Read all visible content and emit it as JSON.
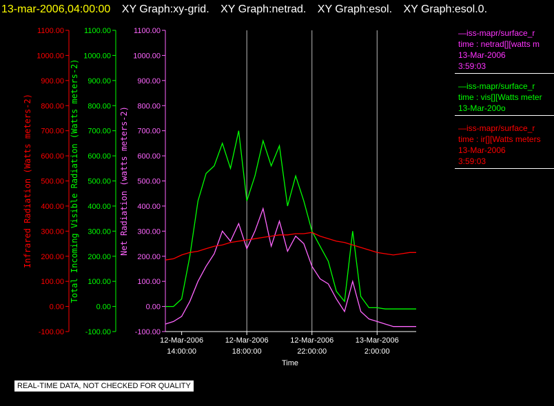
{
  "header": {
    "timestamp": "13-mar-2006,04:00:00",
    "graph_titles": [
      "XY Graph:xy-grid.",
      "XY Graph:netrad.",
      "XY Graph:esol.",
      "XY Graph:esol.0."
    ]
  },
  "legend": [
    {
      "color": "#ff33ff",
      "lines": [
        "—iss-mapr/surface_r",
        "time : netrad[][watts m",
        "13-Mar-2006",
        "3:59:03"
      ]
    },
    {
      "color": "#00ff00",
      "lines": [
        "—iss-mapr/surface_r",
        "time : vis[][Watts meter",
        "13-Mar-200o"
      ]
    },
    {
      "color": "#ff0000",
      "lines": [
        "—iss-mapr/surface_r",
        "time : ir[][Watts meters",
        "13-Mar-2006",
        "3:59:03"
      ]
    }
  ],
  "qc_note": "REAL-TIME DATA, NOT CHECKED FOR QUALITY",
  "chart_data": {
    "type": "line",
    "xlabel": "Time",
    "x_ticks": [
      {
        "line1": "12-Mar-2006",
        "line2": "14:00:00",
        "hours": 14
      },
      {
        "line1": "12-Mar-2006",
        "line2": "18:00:00",
        "hours": 18
      },
      {
        "line1": "12-Mar-2006",
        "line2": "22:00:00",
        "hours": 22
      },
      {
        "line1": "13-Mar-2006",
        "line2": "2:00:00",
        "hours": 26
      }
    ],
    "x_units": "hours since 12-Mar-2006 00:00",
    "xlim": [
      13.0,
      28.4
    ],
    "ylim": [
      -100,
      1100
    ],
    "y_ticks": [
      -100,
      0,
      100,
      200,
      300,
      400,
      500,
      600,
      700,
      800,
      900,
      1000,
      1100
    ],
    "y_tick_labels": [
      "-100.00",
      "0.00",
      "100.00",
      "200.00",
      "300.00",
      "400.00",
      "500.00",
      "600.00",
      "700.00",
      "800.00",
      "900.00",
      "1000.00",
      "1100.00"
    ],
    "grid_x": true,
    "axes": [
      {
        "label": "Infrared Radiation (Watts meters-2)",
        "color": "#ff0000"
      },
      {
        "label": "Total Incoming Visible Radiation (Watts meters-2)",
        "color": "#00ff00"
      },
      {
        "label": "Net Radiation (watts meters-2)",
        "color": "#ff66ff"
      }
    ],
    "series": [
      {
        "name": "vis",
        "color": "#00ff00",
        "x": [
          13.0,
          13.5,
          14.0,
          14.5,
          15.0,
          15.5,
          16.0,
          16.5,
          17.0,
          17.5,
          18.0,
          18.5,
          19.0,
          19.5,
          20.0,
          20.5,
          21.0,
          21.5,
          22.0,
          22.5,
          23.0,
          23.5,
          24.0,
          24.5,
          25.0,
          25.5,
          26.0,
          26.5,
          27.0,
          27.5,
          28.0,
          28.4
        ],
        "y": [
          0,
          0,
          30,
          200,
          420,
          530,
          560,
          650,
          550,
          700,
          420,
          520,
          660,
          560,
          640,
          400,
          520,
          420,
          300,
          240,
          180,
          60,
          20,
          300,
          40,
          -5,
          -5,
          -10,
          -10,
          -10,
          -10,
          -10
        ]
      },
      {
        "name": "netrad",
        "color": "#ff66ff",
        "x": [
          13.0,
          13.5,
          14.0,
          14.5,
          15.0,
          15.5,
          16.0,
          16.5,
          17.0,
          17.5,
          18.0,
          18.5,
          19.0,
          19.5,
          20.0,
          20.5,
          21.0,
          21.5,
          22.0,
          22.5,
          23.0,
          23.5,
          24.0,
          24.5,
          25.0,
          25.5,
          26.0,
          26.5,
          27.0,
          27.5,
          28.0,
          28.4
        ],
        "y": [
          -70,
          -60,
          -40,
          20,
          100,
          160,
          210,
          300,
          260,
          330,
          230,
          300,
          390,
          240,
          340,
          220,
          280,
          250,
          160,
          110,
          90,
          30,
          -20,
          100,
          -20,
          -50,
          -60,
          -70,
          -80,
          -80,
          -80,
          -80
        ]
      },
      {
        "name": "ir",
        "color": "#ff0000",
        "x": [
          13.0,
          13.5,
          14.0,
          14.5,
          15.0,
          15.5,
          16.0,
          16.5,
          17.0,
          17.5,
          18.0,
          18.5,
          19.0,
          19.5,
          20.0,
          20.5,
          21.0,
          21.5,
          22.0,
          22.5,
          23.0,
          23.5,
          24.0,
          24.5,
          25.0,
          25.5,
          26.0,
          26.5,
          27.0,
          27.5,
          28.0,
          28.4
        ],
        "y": [
          185,
          190,
          205,
          215,
          220,
          230,
          240,
          245,
          255,
          260,
          265,
          270,
          275,
          280,
          285,
          285,
          290,
          290,
          295,
          280,
          270,
          260,
          255,
          245,
          235,
          225,
          215,
          210,
          205,
          210,
          215,
          215
        ]
      }
    ]
  }
}
